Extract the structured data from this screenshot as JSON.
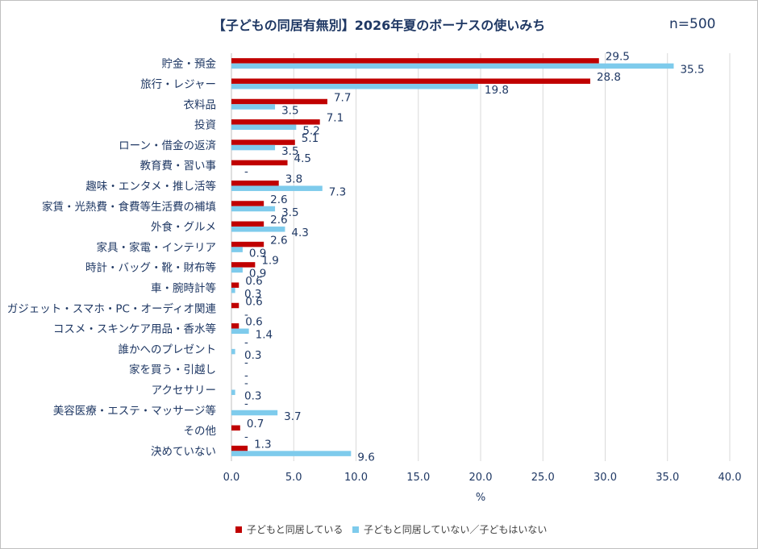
{
  "chart_data": {
    "type": "bar",
    "orientation": "horizontal",
    "title": "【子どもの同居有無別】2026年夏のボーナスの使いみち",
    "sample_size": "n=500",
    "xlabel": "%",
    "xlim": [
      0,
      40
    ],
    "x_ticks": [
      "0.0",
      "5.0",
      "10.0",
      "15.0",
      "20.0",
      "25.0",
      "30.0",
      "35.0",
      "40.0"
    ],
    "grid": "vertical",
    "legend_position": "bottom",
    "categories": [
      "貯金・預金",
      "旅行・レジャー",
      "衣料品",
      "投資",
      "ローン・借金の返済",
      "教育費・習い事",
      "趣味・エンタメ・推し活等",
      "家賃・光熱費・食費等生活費の補填",
      "外食・グルメ",
      "家具・家電・インテリア",
      "時計・バッグ・靴・財布等",
      "車・腕時計等",
      "ガジェット・スマホ・PC・オーディオ関連",
      "コスメ・スキンケア用品・香水等",
      "誰かへのプレゼント",
      "家を買う・引越し",
      "アクセサリー",
      "美容医療・エステ・マッサージ等",
      "その他",
      "決めていない"
    ],
    "series": [
      {
        "name": "子どもと同居している",
        "color": "#c00000",
        "values": [
          29.5,
          28.8,
          7.7,
          7.1,
          5.1,
          4.5,
          3.8,
          2.6,
          2.6,
          2.6,
          1.9,
          0.6,
          0.6,
          0.6,
          0,
          0,
          0,
          0,
          0.7,
          1.3
        ],
        "labels": [
          "29.5",
          "28.8",
          "7.7",
          "7.1",
          "5.1",
          "4.5",
          "3.8",
          "2.6",
          "2.6",
          "2.6",
          "1.9",
          "0.6",
          "0.6",
          "0.6",
          "-",
          "-",
          "-",
          "-",
          "0.7",
          "1.3"
        ]
      },
      {
        "name": "子どもと同居していない／子どもはいない",
        "color": "#7ecbec",
        "values": [
          35.5,
          19.8,
          3.5,
          5.2,
          3.5,
          0,
          7.3,
          3.5,
          4.3,
          0.9,
          0.9,
          0.3,
          0,
          1.4,
          0.3,
          0,
          0.3,
          3.7,
          0,
          9.6
        ],
        "labels": [
          "35.5",
          "19.8",
          "3.5",
          "5.2",
          "3.5",
          "-",
          "7.3",
          "3.5",
          "4.3",
          "0.9",
          "0.9",
          "0.3",
          "-",
          "1.4",
          "0.3",
          "-",
          "0.3",
          "3.7",
          "-",
          "9.6"
        ]
      }
    ]
  }
}
